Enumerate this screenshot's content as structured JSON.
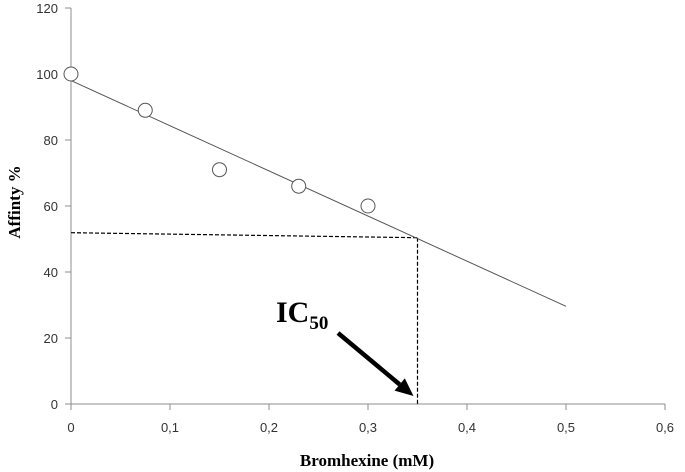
{
  "chart_data": {
    "type": "scatter",
    "title": "",
    "xlabel": "Bromhexine (mM)",
    "ylabel": "Affinty %",
    "xlim": [
      0,
      0.6
    ],
    "ylim": [
      0,
      120
    ],
    "x_ticks": [
      "0",
      "0,1",
      "0,2",
      "0,3",
      "0,4",
      "0,5",
      "0,6"
    ],
    "y_ticks": [
      "0",
      "20",
      "40",
      "60",
      "80",
      "100",
      "120"
    ],
    "x_tick_values": [
      0,
      0.1,
      0.2,
      0.3,
      0.4,
      0.5,
      0.6
    ],
    "y_tick_values": [
      0,
      20,
      40,
      60,
      80,
      100,
      120
    ],
    "grid": false,
    "series": [
      {
        "name": "Affinity",
        "x": [
          0,
          0.075,
          0.15,
          0.23,
          0.3
        ],
        "y": [
          100,
          89,
          71,
          66,
          60
        ]
      }
    ],
    "trendline": {
      "x": [
        0,
        0.5
      ],
      "y": [
        98,
        29.6
      ]
    },
    "ic50": {
      "label_main": "IC",
      "label_sub": "50",
      "x": 0.35,
      "y": 51
    }
  }
}
